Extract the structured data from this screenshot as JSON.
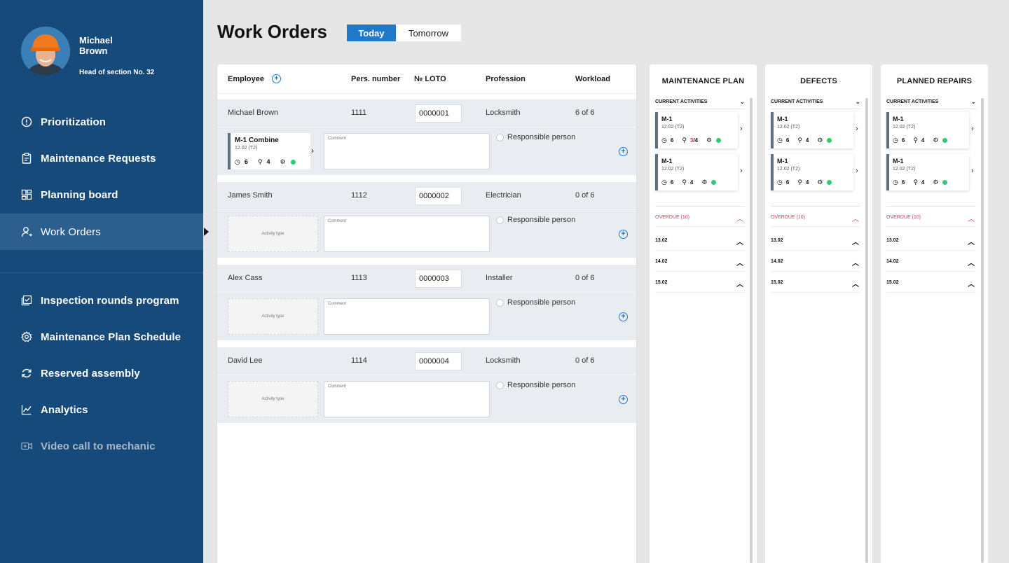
{
  "user": {
    "name": "Michael Brown",
    "role": "Head of section No. 32"
  },
  "nav": {
    "primary": [
      {
        "label": "Prioritization",
        "icon": "alert-circle-icon"
      },
      {
        "label": "Maintenance Requests",
        "icon": "clipboard-icon"
      },
      {
        "label": "Planning board",
        "icon": "dashboard-icon"
      },
      {
        "label": "Work Orders",
        "icon": "user-arrow-icon"
      }
    ],
    "secondary": [
      {
        "label": "Inspection rounds program",
        "icon": "checklist-icon"
      },
      {
        "label": "Maintenance Plan Schedule",
        "icon": "gear-icon"
      },
      {
        "label": "Reserved assembly",
        "icon": "refresh-icon"
      },
      {
        "label": "Analytics",
        "icon": "chart-icon"
      },
      {
        "label": "Video call to mechanic",
        "icon": "video-icon"
      }
    ]
  },
  "header": {
    "title": "Work Orders",
    "today": "Today",
    "tomorrow": "Tomorrow"
  },
  "table": {
    "columns": {
      "employee": "Employee",
      "pers": "Pers. number",
      "loto": "№ LOTO",
      "profession": "Profession",
      "workload": "Workload"
    },
    "rows": [
      {
        "name": "Michael Brown",
        "pers": "1111",
        "loto": "0000001",
        "profession": "Locksmith",
        "workload": "6 of 6"
      },
      {
        "name": "James Smith",
        "pers": "1112",
        "loto": "0000002",
        "profession": "Electrician",
        "workload": "0 of 6"
      },
      {
        "name": "Alex Cass",
        "pers": "1113",
        "loto": "0000003",
        "profession": "Installer",
        "workload": "0 of 6"
      },
      {
        "name": "David Lee",
        "pers": "1114",
        "loto": "0000004",
        "profession": "Locksmith",
        "workload": "0 of 6"
      }
    ],
    "activity": {
      "title": "M-1 Combine",
      "sub": "12.02 (T2)",
      "hours": "6",
      "people": "4"
    },
    "activity_placeholder": "Activity type",
    "comment_placeholder": "Comment",
    "responsible": "Responsible person"
  },
  "boards": [
    {
      "title": "MAINTENANCE PLAN",
      "current": "CURRENT ACTIVITIES",
      "cards": [
        {
          "title": "M-1",
          "sub": "12.02 (T2)",
          "hours": "6",
          "people_a": "3",
          "people_b": "/4"
        },
        {
          "title": "M-1",
          "sub": "12.02 (T2)",
          "hours": "6",
          "people": "4"
        }
      ]
    },
    {
      "title": "DEFECTS",
      "current": "CURRENT ACTIVITIES",
      "cards": [
        {
          "title": "M-1",
          "sub": "12.02 (T2)",
          "hours": "6",
          "people": "4"
        },
        {
          "title": "M-1",
          "sub": "12.02 (T2)",
          "hours": "6",
          "people": "4"
        }
      ]
    },
    {
      "title": "PLANNED REPAIRS",
      "current": "CURRENT ACTIVITIES",
      "cards": [
        {
          "title": "M-1",
          "sub": "12.02 (T2)",
          "hours": "6",
          "people": "4"
        },
        {
          "title": "M-1",
          "sub": "12.02 (T2)",
          "hours": "6",
          "people": "4"
        }
      ]
    }
  ],
  "groups": {
    "overdue": "OVERDUE (10)",
    "d1": "13.02",
    "d2": "14.02",
    "d3": "15.02"
  },
  "colors": {
    "sidebar": "#164a7a",
    "accent": "#1f78c8",
    "overdue": "#e0304e",
    "ok": "#2ecc71"
  }
}
